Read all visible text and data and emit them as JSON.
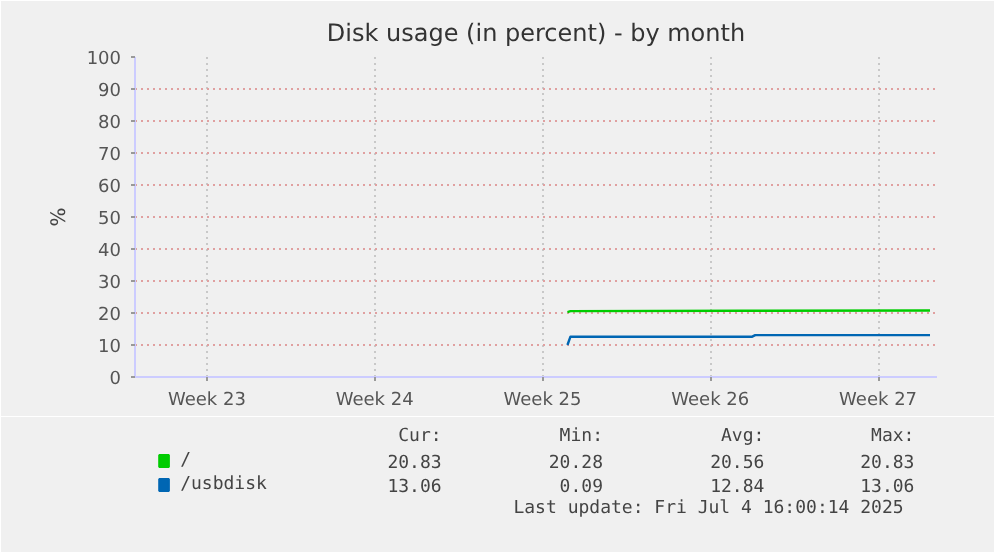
{
  "chart_data": {
    "type": "line",
    "title": "Disk usage (in percent) - by month",
    "ylabel": "%",
    "series": [
      {
        "name": "/",
        "color": "#00cc00",
        "x": [
          "2025-06-19T13:00",
          "2025-06-19T16:00",
          "2025-06-26T22:00",
          "2025-07-04T16:00"
        ],
        "values": [
          20.3,
          20.6,
          20.7,
          20.8
        ]
      },
      {
        "name": "/usbdisk",
        "color": "#0066b3",
        "x": [
          "2025-06-19T13:00",
          "2025-06-19T16:00",
          "2025-06-27T06:00",
          "2025-06-27T09:00",
          "2025-07-04T16:00"
        ],
        "values": [
          10,
          12.6,
          12.6,
          13.1,
          13.1
        ]
      }
    ],
    "xlim": [
      "2025-06-01T12:00",
      "2025-07-04T23:00"
    ],
    "ylim": [
      0,
      100
    ],
    "xticks": [
      {
        "value": "2025-06-04T12:00",
        "label": "Week 23"
      },
      {
        "value": "2025-06-11T12:00",
        "label": "Week 24"
      },
      {
        "value": "2025-06-18T12:00",
        "label": "Week 25"
      },
      {
        "value": "2025-06-25T12:00",
        "label": "Week 26"
      },
      {
        "value": "2025-07-02T12:00",
        "label": "Week 27"
      }
    ],
    "yticks": [
      0,
      10,
      20,
      30,
      40,
      50,
      60,
      70,
      80,
      90,
      100
    ],
    "grid": true,
    "legend": "bottom",
    "marker": "none",
    "line_style": "solid",
    "annotations": [
      "Cur:",
      "Min:",
      "Avg:",
      "Max:",
      "20.83",
      "20.28",
      "20.56",
      "20.83",
      "13.06",
      "0.09",
      "12.84",
      "13.06",
      "Last update: Fri Jul  4 16:00:14 2025"
    ]
  }
}
